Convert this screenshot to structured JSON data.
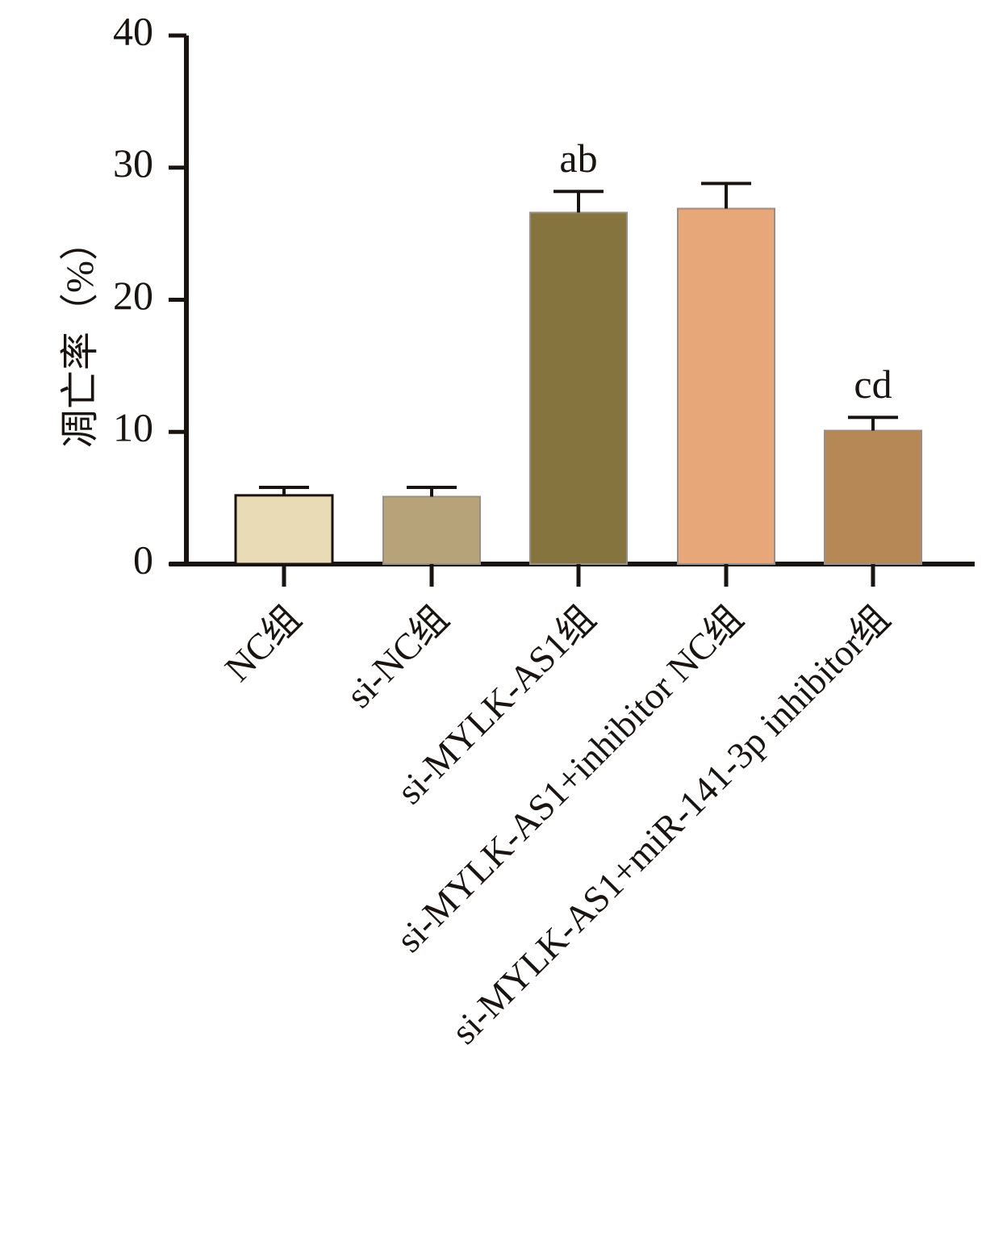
{
  "chart_data": {
    "type": "bar",
    "title": "",
    "xlabel": "",
    "ylabel": "凋亡率（%）",
    "ylim": [
      0,
      40
    ],
    "yticks": [
      0,
      10,
      20,
      30,
      40
    ],
    "categories": [
      "NC组",
      "si-NC组",
      "si-MYLK-AS1组",
      "si-MYLK-AS1+inhibitor NC组",
      "si-MYLK-AS1+miR-141-3p inhibitor组"
    ],
    "values": [
      5.2,
      5.1,
      26.6,
      26.9,
      10.1
    ],
    "errors": [
      0.6,
      0.7,
      1.6,
      1.9,
      1.0
    ],
    "annotations": [
      "",
      "",
      "ab",
      "",
      "cd"
    ],
    "colors": [
      "#E9DBB6",
      "#B6A37A",
      "#86743F",
      "#E8A779",
      "#B68855"
    ],
    "grid": false,
    "legend": "none"
  }
}
